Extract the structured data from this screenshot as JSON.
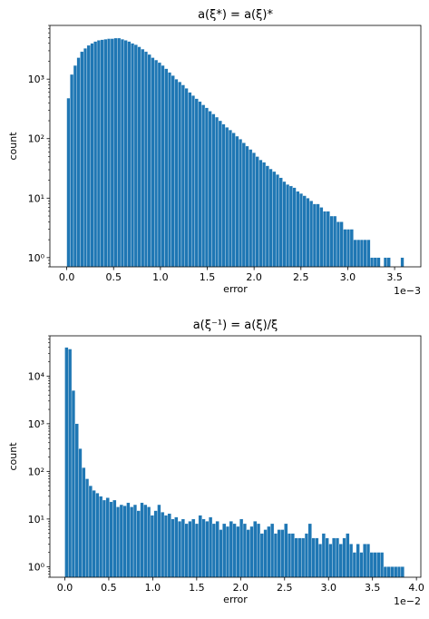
{
  "chart_data": [
    {
      "type": "bar",
      "title": "a(ξ*) = a(ξ)*",
      "xlabel": "error",
      "ylabel": "count",
      "x_scale_label": "1e−3",
      "y_scale": "log",
      "xlim": [
        -0.00018,
        0.00378
      ],
      "ylim": [
        0.7,
        8000
      ],
      "x_ticks": [
        0,
        0.0005,
        0.001,
        0.0015,
        0.002,
        0.0025,
        0.003,
        0.0035
      ],
      "x_tick_labels": [
        "0.0",
        "0.5",
        "1.0",
        "1.5",
        "2.0",
        "2.5",
        "3.0",
        "3.5"
      ],
      "y_ticks": [
        1,
        10,
        100,
        1000
      ],
      "y_tick_labels": [
        "10⁰",
        "10¹",
        "10²",
        "10³"
      ],
      "bin_start": 0,
      "bin_width": 3.6e-05,
      "counts": [
        480,
        1200,
        1700,
        2300,
        2900,
        3300,
        3700,
        4000,
        4300,
        4500,
        4600,
        4700,
        4800,
        4800,
        4900,
        4900,
        4700,
        4500,
        4300,
        4000,
        3800,
        3500,
        3200,
        2900,
        2600,
        2300,
        2100,
        1900,
        1700,
        1500,
        1300,
        1150,
        1000,
        900,
        800,
        700,
        600,
        530,
        470,
        420,
        370,
        330,
        290,
        260,
        230,
        200,
        175,
        155,
        140,
        125,
        110,
        98,
        85,
        75,
        66,
        58,
        50,
        44,
        40,
        35,
        31,
        28,
        25,
        22,
        19,
        17,
        16,
        15,
        13,
        12,
        11,
        10,
        9,
        8,
        8,
        7,
        6,
        6,
        5,
        5,
        4,
        4,
        3,
        3,
        3,
        2,
        2,
        2,
        2,
        2,
        1,
        1,
        1,
        0,
        1,
        1,
        0,
        0,
        0,
        1
      ],
      "color": "#1f77b4"
    },
    {
      "type": "bar",
      "title": "a(ξ⁻¹) = a(ξ)/ξ",
      "xlabel": "error",
      "ylabel": "count",
      "x_scale_label": "1e−2",
      "y_scale": "log",
      "xlim": [
        -0.0017,
        0.0405
      ],
      "ylim": [
        0.6,
        70000
      ],
      "x_ticks": [
        0,
        0.005,
        0.01,
        0.015,
        0.02,
        0.025,
        0.03,
        0.035,
        0.04
      ],
      "x_tick_labels": [
        "0.0",
        "0.5",
        "1.0",
        "1.5",
        "2.0",
        "2.5",
        "3.0",
        "3.5",
        "4.0"
      ],
      "y_ticks": [
        1,
        10,
        100,
        1000,
        10000
      ],
      "y_tick_labels": [
        "10⁰",
        "10¹",
        "10²",
        "10³",
        "10⁴"
      ],
      "bin_start": 0,
      "bin_width": 0.00039,
      "counts": [
        40000,
        37000,
        5000,
        1000,
        300,
        120,
        70,
        50,
        40,
        35,
        30,
        25,
        28,
        23,
        25,
        18,
        20,
        19,
        22,
        18,
        20,
        15,
        22,
        20,
        18,
        12,
        15,
        20,
        14,
        12,
        13,
        10,
        11,
        9,
        10,
        8,
        9,
        10,
        8,
        12,
        10,
        9,
        11,
        8,
        9,
        6,
        8,
        7,
        9,
        8,
        7,
        10,
        8,
        6,
        7,
        9,
        8,
        5,
        6,
        7,
        8,
        5,
        6,
        6,
        8,
        5,
        5,
        4,
        4,
        4,
        5,
        8,
        4,
        4,
        3,
        5,
        4,
        3,
        4,
        4,
        3,
        4,
        5,
        3,
        2,
        3,
        2,
        3,
        3,
        2,
        2,
        2,
        2,
        1,
        1,
        1,
        1,
        1,
        1
      ]
    }
  ]
}
